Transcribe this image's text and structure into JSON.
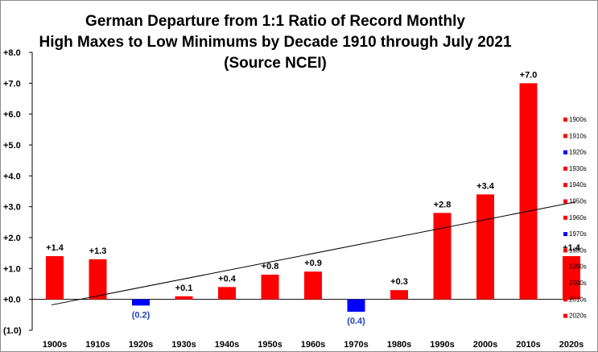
{
  "chart_data": {
    "type": "bar",
    "title_lines": [
      "German Departure  from 1:1 Ratio of Record Monthly",
      "High Maxes to Low Minimums  by Decade 1910 through  July 2021",
      "(Source NCEI)"
    ],
    "categories": [
      "1900s",
      "1910s",
      "1920s",
      "1930s",
      "1940s",
      "1950s",
      "1960s",
      "1970s",
      "1980s",
      "1990s",
      "2000s",
      "2010s",
      "2020s"
    ],
    "values": [
      1.4,
      1.3,
      -0.2,
      0.1,
      0.4,
      0.8,
      0.9,
      -0.4,
      0.3,
      2.8,
      3.4,
      7.0,
      1.4
    ],
    "data_labels": [
      "+1.4",
      "+1.3",
      "(0.2)",
      "+0.1",
      "+0.4",
      "+0.8",
      "+0.9",
      "(0.4)",
      "+0.3",
      "+2.8",
      "+3.4",
      "+7.0",
      "+1.4"
    ],
    "y_ticks": [
      {
        "value": 8,
        "label": "+8.0"
      },
      {
        "value": 7,
        "label": "+7.0"
      },
      {
        "value": 6,
        "label": "+6.0"
      },
      {
        "value": 5,
        "label": "+5.0"
      },
      {
        "value": 4,
        "label": "+4.0"
      },
      {
        "value": 3,
        "label": "+3.0"
      },
      {
        "value": 2,
        "label": "+2.0"
      },
      {
        "value": 1,
        "label": "+1.0"
      },
      {
        "value": 0,
        "label": "+0.0"
      },
      {
        "value": -1,
        "label": "(1.0)"
      }
    ],
    "ylim": [
      -1,
      8
    ],
    "trendline": {
      "start_value": -0.18,
      "end_value": 3.15
    },
    "legend": {
      "placement": "right",
      "entries": [
        "1900s",
        "1910s",
        "1920s",
        "1930s",
        "1940s",
        "1950s",
        "1960s",
        "1970s",
        "1980s",
        "1990s",
        "2000s",
        "2010s",
        "2020s"
      ]
    },
    "grid": false,
    "colors": {
      "positive": "#ff0000",
      "negative": "#0000ff",
      "positive_label": "#000000",
      "negative_label": "#1f3fbf",
      "axis": "#000000",
      "trendline": "#000000"
    }
  }
}
